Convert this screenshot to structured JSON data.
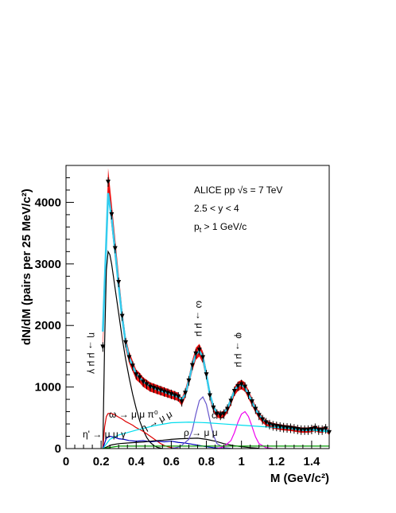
{
  "chart_data": {
    "type": "line",
    "xlabel": "M (GeV/c²)",
    "ylabel": "dN/dM (pairs per 25 MeV/c²)",
    "xlim": [
      0,
      1.5
    ],
    "ylim": [
      0,
      4600
    ],
    "x_ticks": [
      "0",
      "0.2",
      "0.4",
      "0.6",
      "0.8",
      "1",
      "1.2",
      "1.4"
    ],
    "y_ticks": [
      "0",
      "1000",
      "2000",
      "3000",
      "4000"
    ],
    "annotations": {
      "line1": "ALICE pp  √s = 7 TeV",
      "line2": "2.5 < y < 4",
      "line3": "p",
      "line3_sub": "t",
      "line3_rest": " > 1 GeV/c"
    },
    "process_labels": {
      "eta_mumu_gamma": "η → μ μ γ",
      "omega_peak": "ω → μ μ",
      "phi_peak": "φ → μ μ",
      "omega_dalitz": "ω → μ μ π⁰",
      "eta_mumu": "η → μ μ",
      "etaprime": "η' → μ μ γ",
      "rho": "ρ → μ μ",
      "ccbar": "c c̄"
    },
    "series": [
      {
        "role": "data",
        "color": "#000000",
        "x": [
          0.21,
          0.24,
          0.26,
          0.28,
          0.3,
          0.32,
          0.34,
          0.36,
          0.38,
          0.4,
          0.42,
          0.44,
          0.46,
          0.48,
          0.5,
          0.52,
          0.54,
          0.56,
          0.58,
          0.6,
          0.62,
          0.64,
          0.66,
          0.68,
          0.7,
          0.72,
          0.74,
          0.76,
          0.78,
          0.8,
          0.82,
          0.84,
          0.86,
          0.88,
          0.9,
          0.92,
          0.94,
          0.96,
          0.98,
          1.0,
          1.02,
          1.04,
          1.06,
          1.08,
          1.1,
          1.12,
          1.14,
          1.16,
          1.18,
          1.2,
          1.22,
          1.24,
          1.26,
          1.28,
          1.3,
          1.32,
          1.34,
          1.36,
          1.38,
          1.4,
          1.42,
          1.44,
          1.46,
          1.48,
          1.5
        ],
        "y": [
          1650,
          4330,
          3800,
          3250,
          2700,
          2150,
          1720,
          1480,
          1340,
          1200,
          1150,
          1080,
          1040,
          1000,
          980,
          960,
          940,
          920,
          900,
          880,
          860,
          840,
          760,
          900,
          1100,
          1350,
          1540,
          1600,
          1480,
          1200,
          860,
          660,
          560,
          540,
          560,
          640,
          770,
          930,
          1010,
          1040,
          1000,
          880,
          760,
          640,
          540,
          470,
          420,
          390,
          370,
          360,
          350,
          340,
          335,
          330,
          320,
          310,
          300,
          300,
          300,
          310,
          330,
          300,
          300,
          320,
          260
        ]
      },
      {
        "role": "total fit",
        "color": "#33ccee",
        "x": [
          0.21,
          0.24,
          0.26,
          0.28,
          0.3,
          0.32,
          0.34,
          0.36,
          0.38,
          0.4,
          0.42,
          0.44,
          0.46,
          0.48,
          0.5,
          0.52,
          0.54,
          0.56,
          0.58,
          0.6,
          0.62,
          0.64,
          0.66,
          0.68,
          0.7,
          0.72,
          0.74,
          0.76,
          0.78,
          0.8,
          0.82,
          0.84,
          0.86,
          0.88,
          0.9,
          0.92,
          0.94,
          0.96,
          0.98,
          1.0,
          1.02,
          1.04,
          1.06,
          1.08,
          1.1,
          1.12,
          1.14,
          1.16,
          1.18,
          1.2,
          1.22,
          1.24,
          1.26,
          1.28,
          1.3,
          1.32,
          1.34,
          1.36,
          1.38,
          1.4,
          1.42,
          1.44,
          1.46,
          1.48,
          1.5
        ],
        "y": [
          1900,
          4150,
          3750,
          3200,
          2650,
          2130,
          1720,
          1480,
          1340,
          1220,
          1150,
          1090,
          1050,
          1010,
          990,
          960,
          940,
          920,
          900,
          880,
          860,
          840,
          800,
          880,
          1100,
          1350,
          1530,
          1590,
          1480,
          1200,
          880,
          680,
          580,
          560,
          580,
          660,
          790,
          940,
          1020,
          1040,
          990,
          880,
          760,
          640,
          550,
          480,
          430,
          400,
          380,
          365,
          355,
          345,
          338,
          330,
          320,
          312,
          305,
          300,
          300,
          305,
          310,
          305,
          300,
          300,
          290
        ]
      },
      {
        "role": "η → μ μ γ",
        "color": "#000000",
        "x": [
          0.21,
          0.22,
          0.23,
          0.24,
          0.25,
          0.26,
          0.28,
          0.3,
          0.32,
          0.34,
          0.36,
          0.38,
          0.4,
          0.42,
          0.44,
          0.46,
          0.48,
          0.5,
          0.52,
          0.55
        ],
        "y": [
          0,
          1700,
          2900,
          3200,
          3150,
          3000,
          2600,
          2200,
          1800,
          1450,
          1150,
          880,
          650,
          450,
          300,
          180,
          100,
          50,
          20,
          0
        ]
      },
      {
        "role": "ω → μ μ π⁰",
        "color": "#dd0000",
        "x": [
          0.21,
          0.22,
          0.23,
          0.24,
          0.26,
          0.28,
          0.3,
          0.32,
          0.34,
          0.36,
          0.38,
          0.4,
          0.42,
          0.44,
          0.46,
          0.48,
          0.5,
          0.52,
          0.54,
          0.56,
          0.58,
          0.6,
          0.62,
          0.64
        ],
        "y": [
          0,
          350,
          520,
          570,
          570,
          545,
          510,
          480,
          440,
          410,
          380,
          340,
          310,
          280,
          240,
          200,
          160,
          120,
          80,
          50,
          30,
          15,
          5,
          0
        ]
      },
      {
        "role": "η' → μ μ γ",
        "color": "#0000bb",
        "x": [
          0.21,
          0.23,
          0.25,
          0.28,
          0.3,
          0.33,
          0.36,
          0.4,
          0.44,
          0.48,
          0.52,
          0.56,
          0.6,
          0.64,
          0.68,
          0.72,
          0.76,
          0.8,
          0.84,
          0.88,
          0.9
        ],
        "y": [
          0,
          170,
          200,
          180,
          160,
          150,
          130,
          120,
          130,
          110,
          120,
          110,
          120,
          100,
          90,
          70,
          50,
          30,
          15,
          5,
          0
        ]
      },
      {
        "role": "ρ → μ μ",
        "color": "#000000",
        "x": [
          0.21,
          0.26,
          0.3,
          0.35,
          0.4,
          0.45,
          0.5,
          0.55,
          0.6,
          0.65,
          0.7,
          0.75,
          0.8,
          0.85,
          0.9,
          0.95,
          1.0,
          1.05,
          1.1
        ],
        "y": [
          0,
          60,
          80,
          90,
          100,
          110,
          125,
          135,
          150,
          160,
          165,
          170,
          150,
          120,
          80,
          50,
          30,
          15,
          5
        ]
      },
      {
        "role": "ω → μ μ",
        "color": "#6655cc",
        "x": [
          0.6,
          0.65,
          0.7,
          0.72,
          0.74,
          0.76,
          0.78,
          0.8,
          0.82,
          0.84,
          0.86,
          0.9,
          0.95
        ],
        "y": [
          0,
          30,
          150,
          300,
          560,
          780,
          840,
          720,
          460,
          220,
          80,
          15,
          0
        ]
      },
      {
        "role": "φ → μ μ",
        "color": "#ee00ee",
        "x": [
          0.86,
          0.9,
          0.94,
          0.96,
          0.98,
          1.0,
          1.02,
          1.04,
          1.06,
          1.08,
          1.1,
          1.14,
          1.18
        ],
        "y": [
          0,
          30,
          130,
          260,
          430,
          560,
          600,
          520,
          360,
          190,
          80,
          15,
          0
        ]
      },
      {
        "role": "c c̄",
        "color": "#00ddee",
        "x": [
          0.21,
          0.25,
          0.3,
          0.4,
          0.5,
          0.6,
          0.7,
          0.8,
          0.9,
          1.0,
          1.1,
          1.2,
          1.3,
          1.4,
          1.5
        ],
        "y": [
          0,
          150,
          220,
          300,
          370,
          420,
          430,
          420,
          400,
          380,
          360,
          340,
          320,
          300,
          270
        ]
      },
      {
        "role": "η → μ μ",
        "color": "#009900",
        "x": [
          0.21,
          0.3,
          0.5,
          0.7,
          0.9,
          1.1,
          1.3,
          1.5
        ],
        "y": [
          0,
          40,
          40,
          40,
          40,
          40,
          40,
          40
        ]
      }
    ]
  }
}
